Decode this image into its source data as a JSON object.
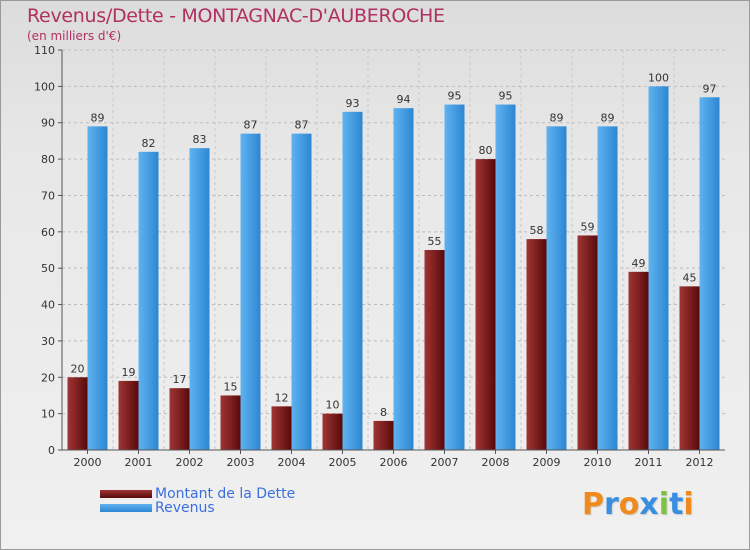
{
  "chart_data": {
    "type": "bar",
    "title": "Revenus/Dette - MONTAGNAC-D'AUBEROCHE",
    "subtitle": "(en milliers d'€)",
    "categories": [
      "2000",
      "2001",
      "2002",
      "2003",
      "2004",
      "2005",
      "2006",
      "2007",
      "2008",
      "2009",
      "2010",
      "2011",
      "2012"
    ],
    "series": [
      {
        "name": "Montant de la Dette",
        "color": "#7a1212",
        "values": [
          20,
          19,
          17,
          15,
          12,
          10,
          8,
          55,
          80,
          58,
          59,
          49,
          45
        ]
      },
      {
        "name": "Revenus",
        "color": "#3f9fe6",
        "values": [
          89,
          82,
          83,
          87,
          87,
          93,
          94,
          95,
          95,
          89,
          89,
          100,
          97
        ]
      }
    ],
    "ylim": [
      0,
      110
    ],
    "yticks": [
      "0",
      "10",
      "20",
      "30",
      "40",
      "50",
      "60",
      "70",
      "80",
      "90",
      "100",
      "110"
    ],
    "grid": true,
    "legend": "bottom-left"
  },
  "logo": {
    "letters": [
      "P",
      "r",
      "o",
      "x",
      "i",
      "t",
      "i"
    ],
    "colors": [
      "#f08a1c",
      "#3a8ee0",
      "#f08a1c",
      "#3a8ee0",
      "#7cc242",
      "#3a8ee0",
      "#f08a1c"
    ]
  }
}
